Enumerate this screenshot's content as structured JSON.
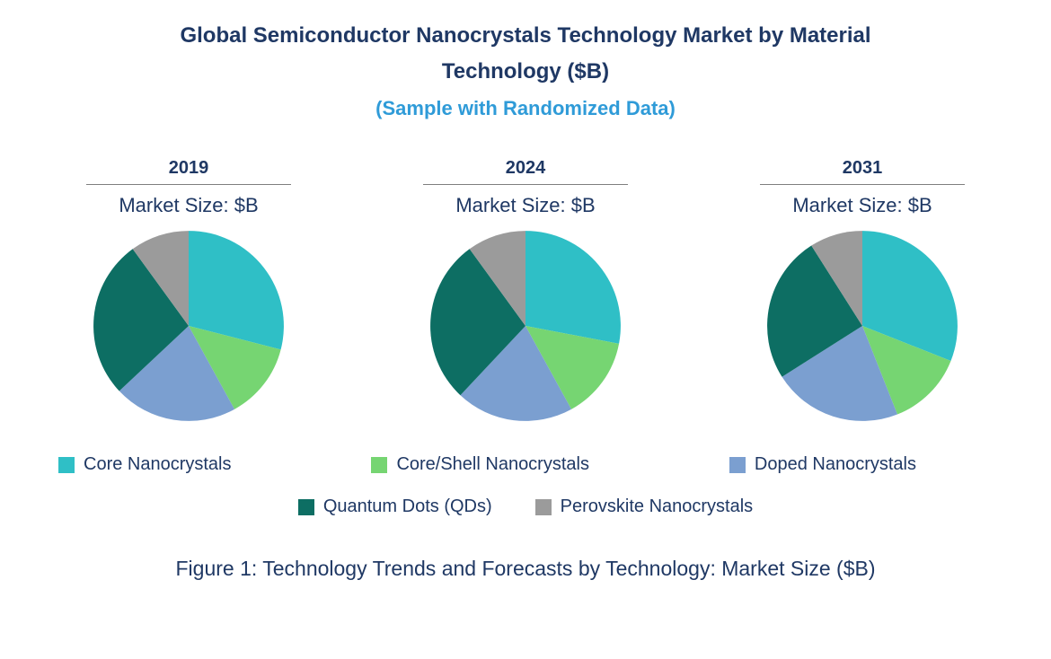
{
  "title": {
    "line1": "Global Semiconductor Nanocrystals Technology Market by Material",
    "line2": "Technology ($B)",
    "subtitle": "(Sample with Randomized Data)"
  },
  "labels": {
    "market_size": "Market Size: $B"
  },
  "legend": [
    {
      "label": "Core Nanocrystals",
      "color": "#2FBFC6"
    },
    {
      "label": "Core/Shell Nanocrystals",
      "color": "#76D572"
    },
    {
      "label": "Doped Nanocrystals",
      "color": "#7B9FD0"
    },
    {
      "label": "Quantum Dots (QDs)",
      "color": "#0D6E63"
    },
    {
      "label": "Perovskite Nanocrystals",
      "color": "#9B9B9B"
    }
  ],
  "caption": "Figure 1: Technology Trends and Forecasts by Technology: Market Size ($B)",
  "chart_data": [
    {
      "type": "pie",
      "title": "2019",
      "subtitle": "Market Size: $B",
      "categories": [
        "Core Nanocrystals",
        "Core/Shell Nanocrystals",
        "Doped Nanocrystals",
        "Quantum Dots (QDs)",
        "Perovskite Nanocrystals"
      ],
      "values": [
        29,
        13,
        21,
        27,
        10
      ],
      "value_format": "percent share (estimated from slice angles; start at 12 o'clock, clockwise)",
      "colors": [
        "#2FBFC6",
        "#76D572",
        "#7B9FD0",
        "#0D6E63",
        "#9B9B9B"
      ],
      "legend_position": "bottom"
    },
    {
      "type": "pie",
      "title": "2024",
      "subtitle": "Market Size: $B",
      "categories": [
        "Core Nanocrystals",
        "Core/Shell Nanocrystals",
        "Doped Nanocrystals",
        "Quantum Dots (QDs)",
        "Perovskite Nanocrystals"
      ],
      "values": [
        28,
        14,
        20,
        28,
        10
      ],
      "value_format": "percent share (estimated from slice angles; start at 12 o'clock, clockwise)",
      "colors": [
        "#2FBFC6",
        "#76D572",
        "#7B9FD0",
        "#0D6E63",
        "#9B9B9B"
      ],
      "legend_position": "bottom"
    },
    {
      "type": "pie",
      "title": "2031",
      "subtitle": "Market Size: $B",
      "categories": [
        "Core Nanocrystals",
        "Core/Shell Nanocrystals",
        "Doped Nanocrystals",
        "Quantum Dots (QDs)",
        "Perovskite Nanocrystals"
      ],
      "values": [
        31,
        13,
        22,
        25,
        9
      ],
      "value_format": "percent share (estimated from slice angles; start at 12 o'clock, clockwise)",
      "colors": [
        "#2FBFC6",
        "#76D572",
        "#7B9FD0",
        "#0D6E63",
        "#9B9B9B"
      ],
      "legend_position": "bottom"
    }
  ]
}
